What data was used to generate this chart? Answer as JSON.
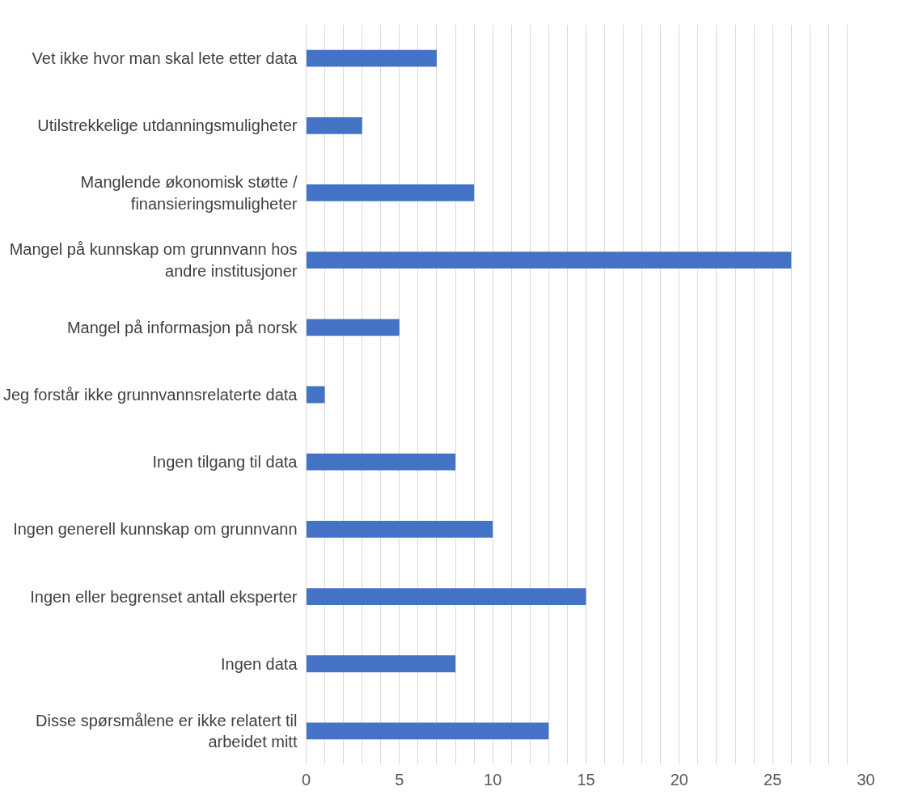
{
  "chart_data": {
    "type": "bar",
    "orientation": "horizontal",
    "categories": [
      "Vet ikke hvor man skal lete etter data",
      "Utilstrekkelige utdanningsmuligheter",
      "Manglende økonomisk støtte /\nfinansieringsmuligheter",
      "Mangel på kunnskap om grunnvann hos\nandre institusjoner",
      "Mangel på informasjon på norsk",
      "Jeg forstår ikke grunnvannsrelaterte data",
      "Ingen tilgang til data",
      "Ingen generell kunnskap om grunnvann",
      "Ingen eller begrenset antall eksperter",
      "Ingen data",
      "Disse spørsmålene er ikke relatert til\narbeidet mitt"
    ],
    "values": [
      7,
      3,
      9,
      26,
      5,
      1,
      8,
      10,
      15,
      8,
      13
    ],
    "color": "#4472c4",
    "xlim": [
      0,
      30
    ],
    "xticks": [
      0,
      {
        "value": 1,
        "label": null
      },
      {
        "value": 2,
        "label": null
      },
      {
        "value": 3,
        "label": null
      },
      {
        "value": 4,
        "label": null
      },
      5,
      {
        "value": 6,
        "label": null
      },
      {
        "value": 7,
        "label": null
      },
      {
        "value": 8,
        "label": null
      },
      {
        "value": 9,
        "label": null
      },
      10,
      {
        "value": 11,
        "label": null
      },
      {
        "value": 12,
        "label": null
      },
      {
        "value": 13,
        "label": null
      },
      {
        "value": 14,
        "label": null
      },
      15,
      {
        "value": 16,
        "label": null
      },
      {
        "value": 17,
        "label": null
      },
      {
        "value": 18,
        "label": null
      },
      {
        "value": 19,
        "label": null
      },
      20,
      {
        "value": 21,
        "label": null
      },
      {
        "value": 22,
        "label": null
      },
      {
        "value": 23,
        "label": null
      },
      {
        "value": 24,
        "label": null
      },
      25,
      {
        "value": 26,
        "label": null
      },
      {
        "value": 27,
        "label": null
      },
      {
        "value": 28,
        "label": null
      },
      {
        "value": 29,
        "label": null
      },
      30
    ],
    "grid": "x"
  }
}
